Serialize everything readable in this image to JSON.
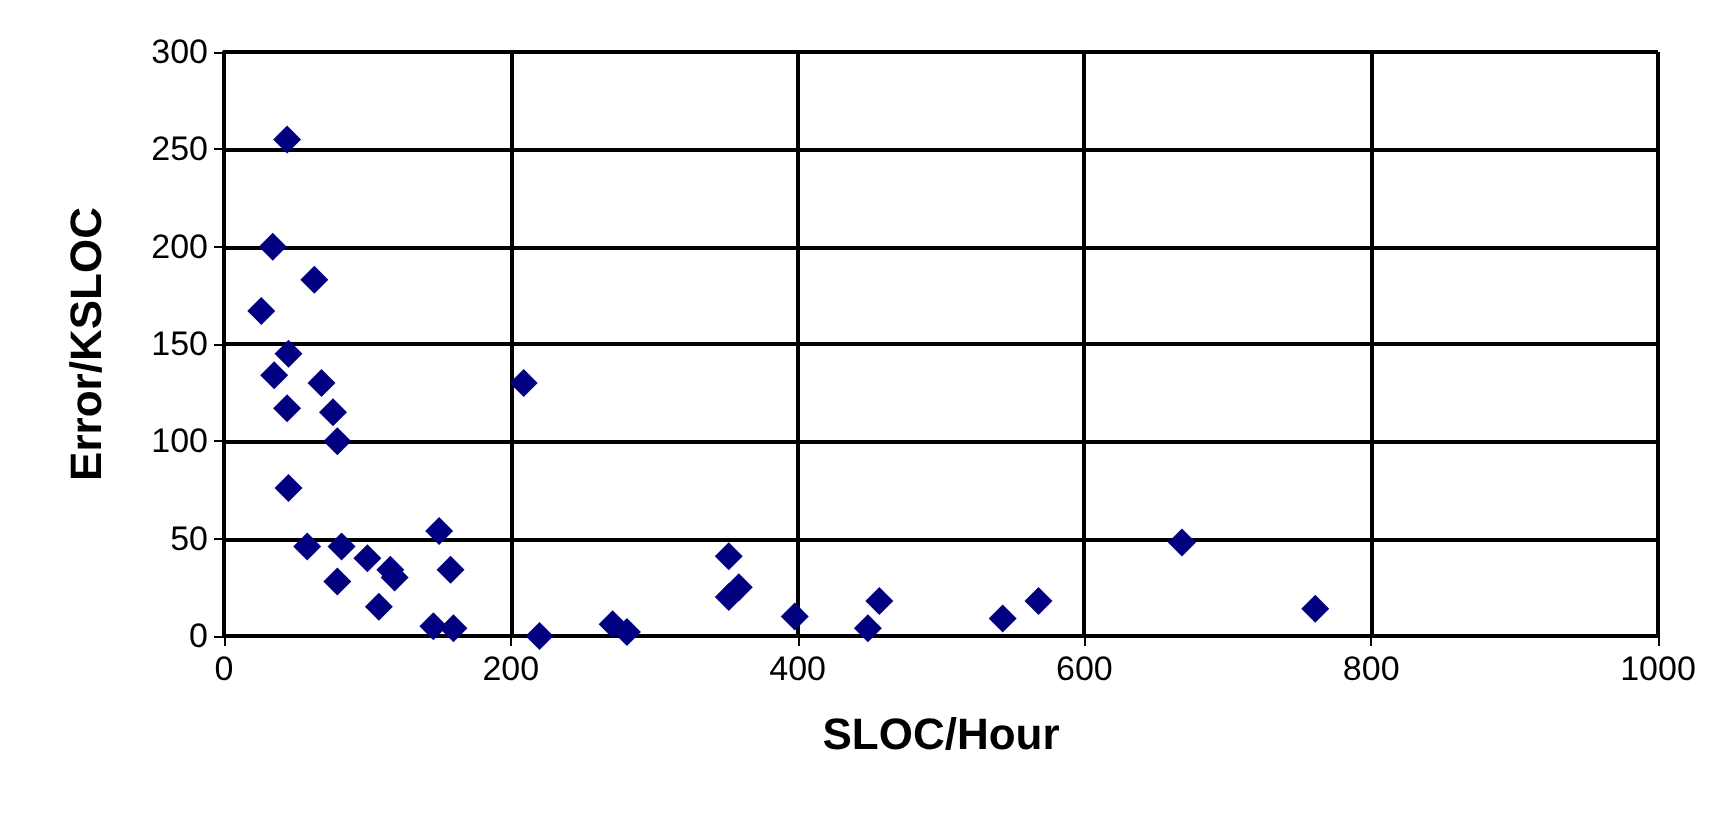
{
  "chart_data": {
    "type": "scatter",
    "xlabel": "SLOC/Hour",
    "ylabel": "Error/KSLOC",
    "x": [
      44,
      34,
      63,
      26,
      45,
      35,
      68,
      44,
      76,
      79,
      45,
      58,
      82,
      100,
      116,
      119,
      79,
      108,
      150,
      158,
      146,
      160,
      209,
      220,
      271,
      281,
      352,
      352,
      359,
      398,
      449,
      457,
      543,
      568,
      668,
      761
    ],
    "series": [
      {
        "color": "#000080",
        "values": [
          255,
          200,
          183,
          167,
          145,
          134,
          130,
          117,
          115,
          100,
          76,
          46,
          46,
          40,
          34,
          30,
          28,
          15,
          54,
          34,
          5,
          4,
          130,
          0,
          6,
          2,
          41,
          20,
          25,
          10,
          4,
          18,
          9,
          18,
          48,
          14
        ]
      }
    ],
    "xlim": [
      0,
      1000
    ],
    "xticks": [
      0,
      200,
      400,
      600,
      800,
      1000
    ],
    "ylim": [
      0,
      300
    ],
    "yticks": [
      0,
      50,
      100,
      150,
      200,
      250,
      300
    ],
    "grid": true,
    "marker": "diamond"
  }
}
